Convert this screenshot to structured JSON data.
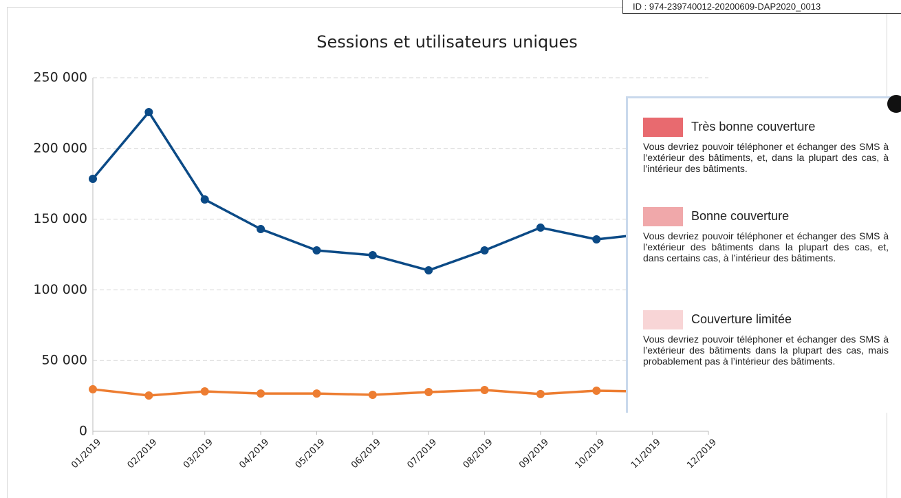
{
  "id_label": "ID : 974-239740012-20200609-DAP2020_0013",
  "chart_data": {
    "type": "line",
    "title": "Sessions et utilisateurs uniques",
    "categories": [
      "01/2019",
      "02/2019",
      "03/2019",
      "04/2019",
      "05/2019",
      "06/2019",
      "07/2019",
      "08/2019",
      "09/2019",
      "10/2019",
      "11/2019",
      "12/2019"
    ],
    "series": [
      {
        "color": "#0b4a86",
        "values": [
          178500,
          225700,
          163900,
          143000,
          127900,
          124500,
          113800,
          127900,
          144000,
          135700,
          140000,
          null
        ]
      },
      {
        "color": "#ed7d31",
        "values": [
          29700,
          25300,
          28200,
          26700,
          26700,
          25800,
          27700,
          29200,
          26300,
          28700,
          28000,
          null
        ]
      }
    ],
    "ylim": [
      0,
      250000
    ],
    "yticks": [
      0,
      {
        "value": 50000,
        "label": "50 000"
      },
      {
        "value": 100000,
        "label": "100 000"
      },
      {
        "value": 150000,
        "label": "150 000"
      },
      {
        "value": 200000,
        "label": "200 000"
      },
      {
        "value": 250000,
        "label": "250 000"
      }
    ],
    "grid": true
  },
  "popup": {
    "items": [
      {
        "color": "#e86a6f",
        "title": "Très bonne couverture",
        "text": "Vous devriez pouvoir téléphoner et échanger des SMS à l’extérieur des bâtiments, et, dans la plupart des cas, à l’intérieur des bâtiments."
      },
      {
        "color": "#f0a8aa",
        "title": "Bonne couverture",
        "text": "Vous devriez pouvoir téléphoner et échanger des SMS à l’extérieur des bâtiments dans la plupart des cas, et, dans certains cas, à l’intérieur des bâtiments."
      },
      {
        "color": "#f8d5d6",
        "title": "Couverture limitée",
        "text": "Vous devriez pouvoir téléphoner et échanger des SMS à l’extérieur des bâtiments dans la plupart des cas, mais probablement pas à l’intérieur des bâtiments."
      }
    ]
  }
}
